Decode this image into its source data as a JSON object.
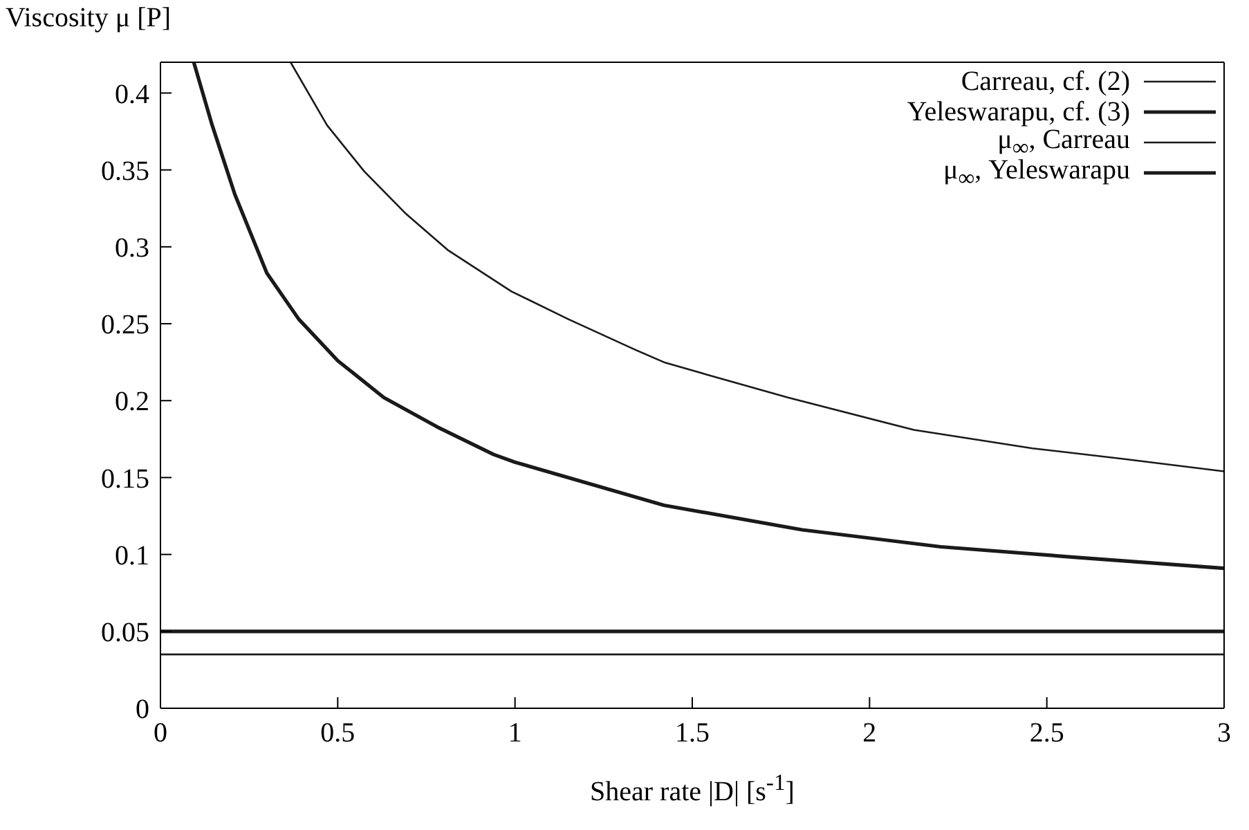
{
  "chart_data": {
    "type": "line",
    "ylabel": "Viscosity μ [P]",
    "xlabel": "Shear rate |D| [s$^{-1}$]",
    "xlim": [
      0,
      3
    ],
    "xticks": [
      0,
      0.5,
      1,
      1.5,
      2,
      2.5,
      3
    ],
    "ylim": [
      0,
      0.42
    ],
    "yticks": [
      0,
      0.05,
      0.1,
      0.15,
      0.2,
      0.25,
      0.3,
      0.35,
      0.4
    ],
    "legend": "top right",
    "marker": "none",
    "line_style": "solid",
    "series": [
      {
        "name": "Carreau, cf. (2)",
        "color": "#1a1a1a",
        "x": [
          0.367,
          0.47,
          0.575,
          0.69,
          0.81,
          0.99,
          1.15,
          1.34,
          1.42,
          1.54,
          1.77,
          2.125,
          2.46,
          2.72,
          3
        ],
        "values": [
          0.42,
          0.379,
          0.349,
          0.322,
          0.298,
          0.271,
          0.253,
          0.233,
          0.225,
          0.217,
          0.202,
          0.181,
          0.169,
          0.162,
          0.154
        ]
      },
      {
        "name": "Yeleswarapu, cf. (3)",
        "color": "#1a1a1a",
        "x": [
          0.094,
          0.146,
          0.21,
          0.3,
          0.39,
          0.5,
          0.63,
          0.78,
          0.94,
          1.0,
          1.42,
          1.81,
          2.2,
          2.59,
          3
        ],
        "values": [
          0.42,
          0.379,
          0.334,
          0.283,
          0.253,
          0.226,
          0.202,
          0.183,
          0.165,
          0.16,
          0.132,
          0.116,
          0.105,
          0.098,
          0.091
        ]
      },
      {
        "name": "μ$_{∞}$, Carreau",
        "color": "#1a1a1a",
        "x": [
          0,
          3
        ],
        "values": [
          0.035,
          0.035
        ]
      },
      {
        "name": "μ$_{∞}$, Yeleswarapu",
        "color": "#1a1a1a",
        "x": [
          0,
          3
        ],
        "values": [
          0.05,
          0.05
        ]
      }
    ]
  }
}
